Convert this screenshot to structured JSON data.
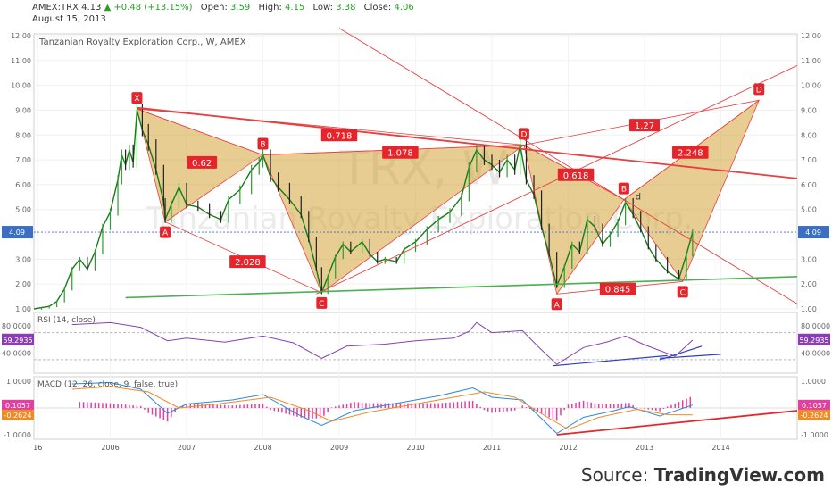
{
  "header": {
    "symbol": "AMEX:TRX",
    "last": "4.13",
    "change": "▲ +0.48 (+13.15%)",
    "open_label": "Open:",
    "open": "3.59",
    "high_label": "High:",
    "high": "4.15",
    "low_label": "Low:",
    "low": "3.38",
    "close_label": "Close:",
    "close": "4.06",
    "date": "August 15, 2013"
  },
  "chart_title": "Tanzanian Royalty Exploration Corp., W, AMEX",
  "watermark_symbol": "TRX, W",
  "watermark_name": "Tanzanian Royalty Exploration Corp.",
  "source_prefix": "Source:",
  "source_brand": "TradingView.com",
  "price_tag": "4.09",
  "rsi": {
    "label": "RSI (14, close)",
    "value_tag": "59.2935",
    "ticks": [
      "80.0000",
      "40.0000"
    ]
  },
  "macd": {
    "label": "MACD (12, 26, close, 9, false, true)",
    "value_tag_1": "0.1057",
    "value_tag_2": "-0.2624",
    "ticks": [
      "1.0000",
      "-1.0000"
    ]
  },
  "x_labels": [
    "16",
    "2006",
    "2007",
    "2008",
    "2009",
    "2010",
    "2011",
    "2012",
    "2013",
    "2014"
  ],
  "colors": {
    "pattern_fill": "#d4a437",
    "pattern_line": "#e84040",
    "trend_green": "#4caf50",
    "rsi_line": "#8a3fb0",
    "trend_blue": "#2f3fbf",
    "macd_line": "#2a8ad6",
    "signal_line": "#f08a24",
    "hist": "#e040a0"
  },
  "chart_data": {
    "type": "line",
    "y_ticks": [
      "12.00",
      "11.00",
      "10.00",
      "9.00",
      "8.00",
      "7.00",
      "6.00",
      "5.00",
      "3.00",
      "2.00",
      "1.00"
    ],
    "ylim": [
      1,
      12
    ],
    "x_range": [
      2005.0,
      2015.0
    ],
    "price": [
      [
        2005.0,
        1.0
      ],
      [
        2005.1,
        1.05
      ],
      [
        2005.2,
        1.1
      ],
      [
        2005.3,
        1.3
      ],
      [
        2005.4,
        1.8
      ],
      [
        2005.5,
        2.6
      ],
      [
        2005.6,
        3.0
      ],
      [
        2005.7,
        2.6
      ],
      [
        2005.8,
        3.3
      ],
      [
        2005.9,
        4.3
      ],
      [
        2006.0,
        4.9
      ],
      [
        2006.1,
        6.2
      ],
      [
        2006.15,
        7.2
      ],
      [
        2006.2,
        6.8
      ],
      [
        2006.25,
        7.4
      ],
      [
        2006.3,
        6.9
      ],
      [
        2006.35,
        9.0
      ],
      [
        2006.42,
        8.2
      ],
      [
        2006.5,
        7.6
      ],
      [
        2006.6,
        6.6
      ],
      [
        2006.7,
        5.3
      ],
      [
        2006.72,
        4.6
      ],
      [
        2006.8,
        5.2
      ],
      [
        2006.9,
        5.9
      ],
      [
        2007.0,
        5.2
      ],
      [
        2007.15,
        5.1
      ],
      [
        2007.3,
        4.8
      ],
      [
        2007.45,
        4.6
      ],
      [
        2007.55,
        5.4
      ],
      [
        2007.7,
        5.8
      ],
      [
        2007.85,
        6.6
      ],
      [
        2007.95,
        6.9
      ],
      [
        2008.0,
        7.2
      ],
      [
        2008.1,
        6.3
      ],
      [
        2008.2,
        5.9
      ],
      [
        2008.35,
        5.4
      ],
      [
        2008.5,
        4.8
      ],
      [
        2008.6,
        3.8
      ],
      [
        2008.7,
        2.6
      ],
      [
        2008.77,
        1.65
      ],
      [
        2008.85,
        2.3
      ],
      [
        2008.95,
        3.1
      ],
      [
        2009.05,
        3.6
      ],
      [
        2009.15,
        3.3
      ],
      [
        2009.3,
        3.7
      ],
      [
        2009.4,
        3.2
      ],
      [
        2009.5,
        2.9
      ],
      [
        2009.6,
        3.0
      ],
      [
        2009.75,
        2.9
      ],
      [
        2009.85,
        3.4
      ],
      [
        2010.0,
        3.7
      ],
      [
        2010.15,
        4.2
      ],
      [
        2010.3,
        4.6
      ],
      [
        2010.45,
        4.9
      ],
      [
        2010.6,
        5.5
      ],
      [
        2010.7,
        6.7
      ],
      [
        2010.8,
        7.4
      ],
      [
        2010.9,
        7.0
      ],
      [
        2011.0,
        6.8
      ],
      [
        2011.1,
        6.5
      ],
      [
        2011.2,
        7.0
      ],
      [
        2011.3,
        6.6
      ],
      [
        2011.37,
        7.6
      ],
      [
        2011.45,
        6.2
      ],
      [
        2011.55,
        5.6
      ],
      [
        2011.65,
        4.3
      ],
      [
        2011.75,
        3.2
      ],
      [
        2011.85,
        1.9
      ],
      [
        2011.95,
        2.7
      ],
      [
        2012.05,
        3.6
      ],
      [
        2012.15,
        3.3
      ],
      [
        2012.25,
        4.6
      ],
      [
        2012.35,
        4.3
      ],
      [
        2012.45,
        3.6
      ],
      [
        2012.55,
        4.0
      ],
      [
        2012.65,
        4.5
      ],
      [
        2012.75,
        5.3
      ],
      [
        2012.85,
        4.8
      ],
      [
        2012.95,
        4.2
      ],
      [
        2013.05,
        3.5
      ],
      [
        2013.15,
        3.0
      ],
      [
        2013.3,
        2.5
      ],
      [
        2013.45,
        2.2
      ],
      [
        2013.55,
        3.2
      ],
      [
        2013.63,
        4.09
      ]
    ],
    "pattern_points": [
      {
        "label": "X",
        "x": 2006.35,
        "y": 9.05
      },
      {
        "label": "A",
        "x": 2006.72,
        "y": 4.5
      },
      {
        "label": "B",
        "x": 2008.0,
        "y": 7.2
      },
      {
        "label": "C",
        "x": 2008.77,
        "y": 1.65
      },
      {
        "label": "D",
        "x": 2011.42,
        "y": 7.6
      },
      {
        "label": "A",
        "x": 2011.85,
        "y": 1.6
      },
      {
        "label": "B",
        "x": 2012.73,
        "y": 5.4
      },
      {
        "label": "C",
        "x": 2013.5,
        "y": 2.1
      },
      {
        "label": "D",
        "x": 2014.5,
        "y": 9.4
      }
    ],
    "ratios": [
      {
        "label": "0.62",
        "x": 2007.2,
        "y": 6.9
      },
      {
        "label": "0.718",
        "x": 2009.0,
        "y": 8.0
      },
      {
        "label": "1.078",
        "x": 2009.8,
        "y": 7.3
      },
      {
        "label": "2.028",
        "x": 2007.8,
        "y": 2.9
      },
      {
        "label": "0.618",
        "x": 2012.1,
        "y": 6.4
      },
      {
        "label": "1.27",
        "x": 2013.0,
        "y": 8.4
      },
      {
        "label": "2.248",
        "x": 2013.6,
        "y": 7.3
      },
      {
        "label": "0.845",
        "x": 2012.65,
        "y": 1.8
      }
    ],
    "small_label": {
      "label": "d",
      "x": 2012.88,
      "y": 5.4
    },
    "red_lines": [
      [
        [
          2006.35,
          9.1
        ],
        [
          2015.0,
          6.25
        ]
      ],
      [
        [
          2009.0,
          12.3
        ],
        [
          2015.0,
          1.2
        ]
      ],
      [
        [
          2008.7,
          1.6
        ],
        [
          2015.0,
          10.8
        ]
      ]
    ],
    "green_line": [
      [
        2006.2,
        1.45
      ],
      [
        2015.0,
        2.3
      ]
    ],
    "rsi": [
      [
        2005.5,
        82
      ],
      [
        2006.0,
        85
      ],
      [
        2006.4,
        78
      ],
      [
        2006.75,
        58
      ],
      [
        2007.0,
        62
      ],
      [
        2007.5,
        56
      ],
      [
        2008.0,
        65
      ],
      [
        2008.4,
        55
      ],
      [
        2008.77,
        32
      ],
      [
        2009.1,
        50
      ],
      [
        2009.6,
        53
      ],
      [
        2010.0,
        58
      ],
      [
        2010.5,
        62
      ],
      [
        2010.7,
        72
      ],
      [
        2010.8,
        85
      ],
      [
        2011.0,
        70
      ],
      [
        2011.4,
        73
      ],
      [
        2011.6,
        50
      ],
      [
        2011.85,
        23
      ],
      [
        2012.2,
        48
      ],
      [
        2012.5,
        56
      ],
      [
        2012.75,
        65
      ],
      [
        2013.0,
        52
      ],
      [
        2013.4,
        35
      ],
      [
        2013.63,
        59
      ]
    ],
    "rsi_trend": [
      [
        2011.8,
        21
      ],
      [
        2013.3,
        36
      ]
    ],
    "rsi_trend2": [
      [
        2013.2,
        30
      ],
      [
        2013.75,
        50
      ]
    ],
    "rsi_trend3": [
      [
        2013.2,
        32
      ],
      [
        2014.0,
        38
      ]
    ],
    "macd": [
      [
        2005.5,
        0.9
      ],
      [
        2006.0,
        0.95
      ],
      [
        2006.4,
        0.7
      ],
      [
        2006.75,
        -0.2
      ],
      [
        2007.0,
        0.15
      ],
      [
        2007.6,
        0.3
      ],
      [
        2008.0,
        0.5
      ],
      [
        2008.5,
        -0.3
      ],
      [
        2008.77,
        -0.65
      ],
      [
        2009.2,
        -0.1
      ],
      [
        2009.8,
        0.2
      ],
      [
        2010.3,
        0.45
      ],
      [
        2010.75,
        0.75
      ],
      [
        2011.0,
        0.4
      ],
      [
        2011.4,
        0.3
      ],
      [
        2011.85,
        -0.95
      ],
      [
        2012.2,
        -0.35
      ],
      [
        2012.6,
        -0.1
      ],
      [
        2012.8,
        0.05
      ],
      [
        2013.2,
        -0.3
      ],
      [
        2013.63,
        0.11
      ]
    ],
    "signal": [
      [
        2005.5,
        0.7
      ],
      [
        2006.0,
        0.8
      ],
      [
        2006.5,
        0.6
      ],
      [
        2006.9,
        0.0
      ],
      [
        2007.4,
        0.15
      ],
      [
        2008.1,
        0.4
      ],
      [
        2008.6,
        -0.1
      ],
      [
        2008.9,
        -0.5
      ],
      [
        2009.4,
        -0.15
      ],
      [
        2010.0,
        0.15
      ],
      [
        2010.5,
        0.4
      ],
      [
        2010.9,
        0.6
      ],
      [
        2011.3,
        0.4
      ],
      [
        2011.7,
        -0.3
      ],
      [
        2012.0,
        -0.8
      ],
      [
        2012.4,
        -0.35
      ],
      [
        2012.9,
        -0.05
      ],
      [
        2013.3,
        -0.25
      ],
      [
        2013.63,
        -0.26
      ]
    ],
    "macd_trend": [
      [
        2011.85,
        -1.0
      ],
      [
        2015.0,
        -0.1
      ]
    ]
  }
}
